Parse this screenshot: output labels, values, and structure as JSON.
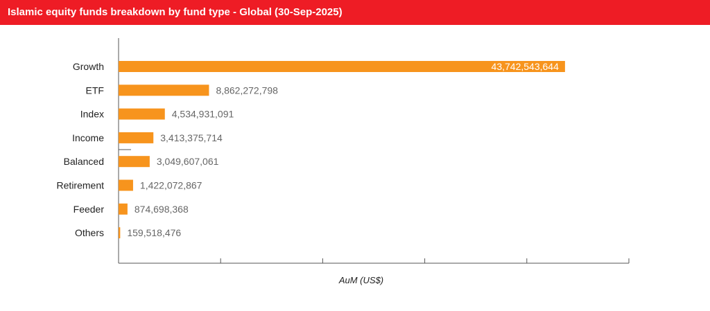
{
  "title": "Islamic equity funds breakdown by fund type - Global (30-Sep-2025)",
  "colors": {
    "header": "#ee1c25",
    "bar": "#f7941d",
    "axis": "#555555"
  },
  "chart_data": {
    "type": "bar",
    "orientation": "horizontal",
    "title": "Islamic equity funds breakdown by fund type - Global (30-Sep-2025)",
    "xlabel": "AuM (US$)",
    "ylabel": "",
    "xlim": [
      0,
      50000000000
    ],
    "grid": false,
    "legend": "none",
    "categories": [
      "Growth",
      "ETF",
      "Index",
      "Income",
      "Balanced",
      "Retirement",
      "Feeder",
      "Others"
    ],
    "values": [
      43742543644,
      8862272798,
      4534931091,
      3413375714,
      3049607061,
      1422072867,
      874698368,
      159518476
    ],
    "value_labels": [
      "43,742,543,644",
      "8,862,272,798",
      "4,534,931,091",
      "3,413,375,714",
      "3,049,607,061",
      "1,422,072,867",
      "874,698,368",
      "159,518,476"
    ]
  }
}
